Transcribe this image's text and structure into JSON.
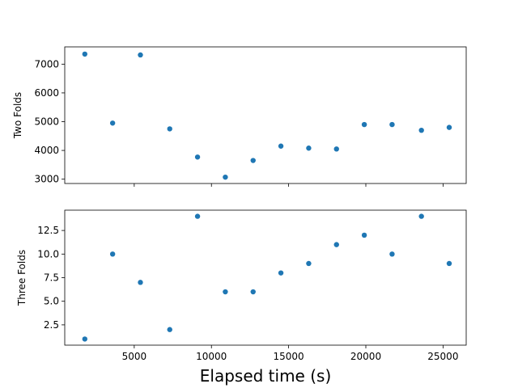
{
  "figure": {
    "xlabel": "Elapsed time (s)"
  },
  "chart_data": [
    {
      "type": "scatter",
      "ylabel": "Two Folds",
      "marker_color": "#1f77b4",
      "xlim": [
        500,
        26500
      ],
      "ylim": [
        2850,
        7600
      ],
      "xticks": [
        5000,
        10000,
        15000,
        20000,
        25000
      ],
      "xtick_labels_visible": false,
      "yticks": [
        3000,
        4000,
        5000,
        6000,
        7000
      ],
      "ytick_labels": [
        "3000",
        "4000",
        "5000",
        "6000",
        "7000"
      ],
      "grid": false,
      "x": [
        1800,
        3600,
        5400,
        7300,
        9100,
        10900,
        12700,
        14500,
        16300,
        18100,
        19900,
        21700,
        23600,
        25400
      ],
      "y": [
        7350,
        4950,
        7320,
        4750,
        3770,
        3070,
        3650,
        4150,
        4080,
        4050,
        4900,
        4900,
        4700,
        4800
      ]
    },
    {
      "type": "scatter",
      "ylabel": "Three Folds",
      "marker_color": "#1f77b4",
      "xlim": [
        500,
        26500
      ],
      "ylim": [
        0.35,
        14.65
      ],
      "xticks": [
        5000,
        10000,
        15000,
        20000,
        25000
      ],
      "xtick_labels": [
        "5000",
        "10000",
        "15000",
        "20000",
        "25000"
      ],
      "xtick_labels_visible": true,
      "yticks": [
        2.5,
        5.0,
        7.5,
        10.0,
        12.5
      ],
      "ytick_labels": [
        "2.5",
        "5.0",
        "7.5",
        "10.0",
        "12.5"
      ],
      "grid": false,
      "x": [
        1800,
        3600,
        5400,
        7300,
        9100,
        10900,
        12700,
        14500,
        16300,
        18100,
        19900,
        21700,
        23600,
        25400
      ],
      "y": [
        1,
        10,
        7,
        2,
        14,
        6,
        6,
        8,
        9,
        11,
        12,
        10,
        14,
        9
      ]
    }
  ]
}
